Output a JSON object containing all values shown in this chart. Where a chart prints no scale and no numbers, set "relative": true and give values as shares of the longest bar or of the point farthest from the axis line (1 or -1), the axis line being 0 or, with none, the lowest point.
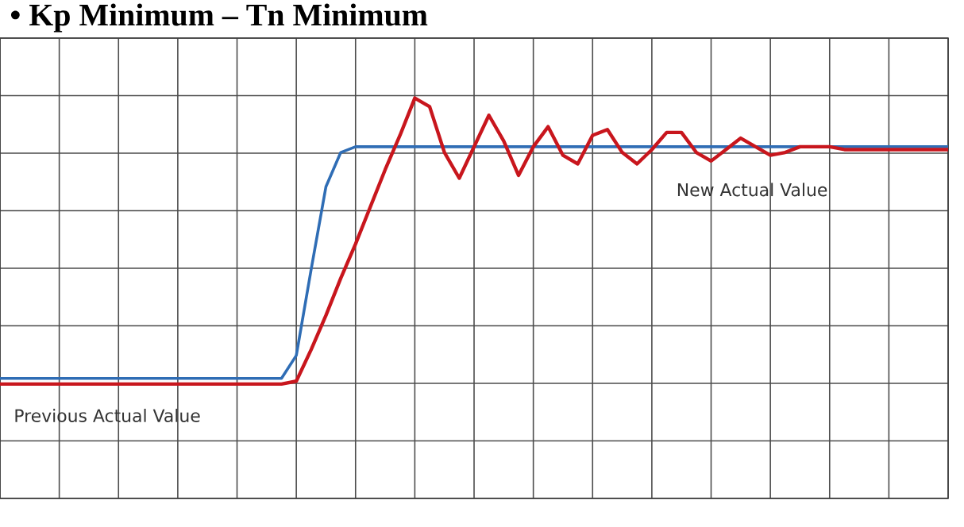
{
  "chart_data": {
    "type": "line",
    "title": "• Kp Minimum – Tn Minimum",
    "relative": true,
    "grid": true,
    "marker": "none",
    "line_style": "solid",
    "categories": [
      null,
      null,
      null,
      null,
      null,
      null,
      null,
      null,
      null,
      null,
      null,
      null,
      null,
      null,
      null,
      null,
      null,
      null,
      null,
      null,
      null,
      null,
      null,
      null,
      null,
      null,
      null,
      null,
      null,
      null,
      null,
      null,
      null,
      null,
      null,
      null,
      null,
      null,
      null,
      null,
      null,
      null,
      null,
      null,
      null,
      null,
      null,
      null,
      null,
      null,
      null,
      null,
      null,
      null,
      null,
      null,
      null,
      null,
      null,
      null,
      null,
      null,
      null,
      null,
      null
    ],
    "series": [
      {
        "color": "#2f6db5",
        "values": [
          0.02,
          0.02,
          0.02,
          0.02,
          0.02,
          0.02,
          0.02,
          0.02,
          0.02,
          0.02,
          0.02,
          0.02,
          0.02,
          0.02,
          0.02,
          0.02,
          0.02,
          0.02,
          0.02,
          0.02,
          0.1,
          0.4,
          0.69,
          0.81,
          0.83,
          0.83,
          0.83,
          0.83,
          0.83,
          0.83,
          0.83,
          0.83,
          0.83,
          0.83,
          0.83,
          0.83,
          0.83,
          0.83,
          0.83,
          0.83,
          0.83,
          0.83,
          0.83,
          0.83,
          0.83,
          0.83,
          0.83,
          0.83,
          0.83,
          0.83,
          0.83,
          0.83,
          0.83,
          0.83,
          0.83,
          0.83,
          0.83,
          0.83,
          0.83,
          0.83,
          0.83,
          0.83,
          0.83,
          0.83,
          0.83
        ]
      },
      {
        "color": "#c8161d",
        "values": [
          0,
          0,
          0,
          0,
          0,
          0,
          0,
          0,
          0,
          0,
          0,
          0,
          0,
          0,
          0,
          0,
          0,
          0,
          0,
          0,
          0.01,
          0.12,
          0.24,
          0.37,
          0.49,
          0.62,
          0.75,
          0.87,
          1,
          0.97,
          0.81,
          0.72,
          0.83,
          0.94,
          0.85,
          0.73,
          0.83,
          0.9,
          0.8,
          0.77,
          0.87,
          0.89,
          0.81,
          0.77,
          0.82,
          0.88,
          0.88,
          0.81,
          0.78,
          0.82,
          0.86,
          0.83,
          0.8,
          0.81,
          0.83,
          0.83,
          0.83,
          0.82,
          0.82,
          0.82,
          0.82,
          0.82,
          0.82,
          0.82,
          0.82
        ]
      }
    ],
    "annotations": [
      "New Actual Value",
      "Previous Actual Value"
    ]
  }
}
